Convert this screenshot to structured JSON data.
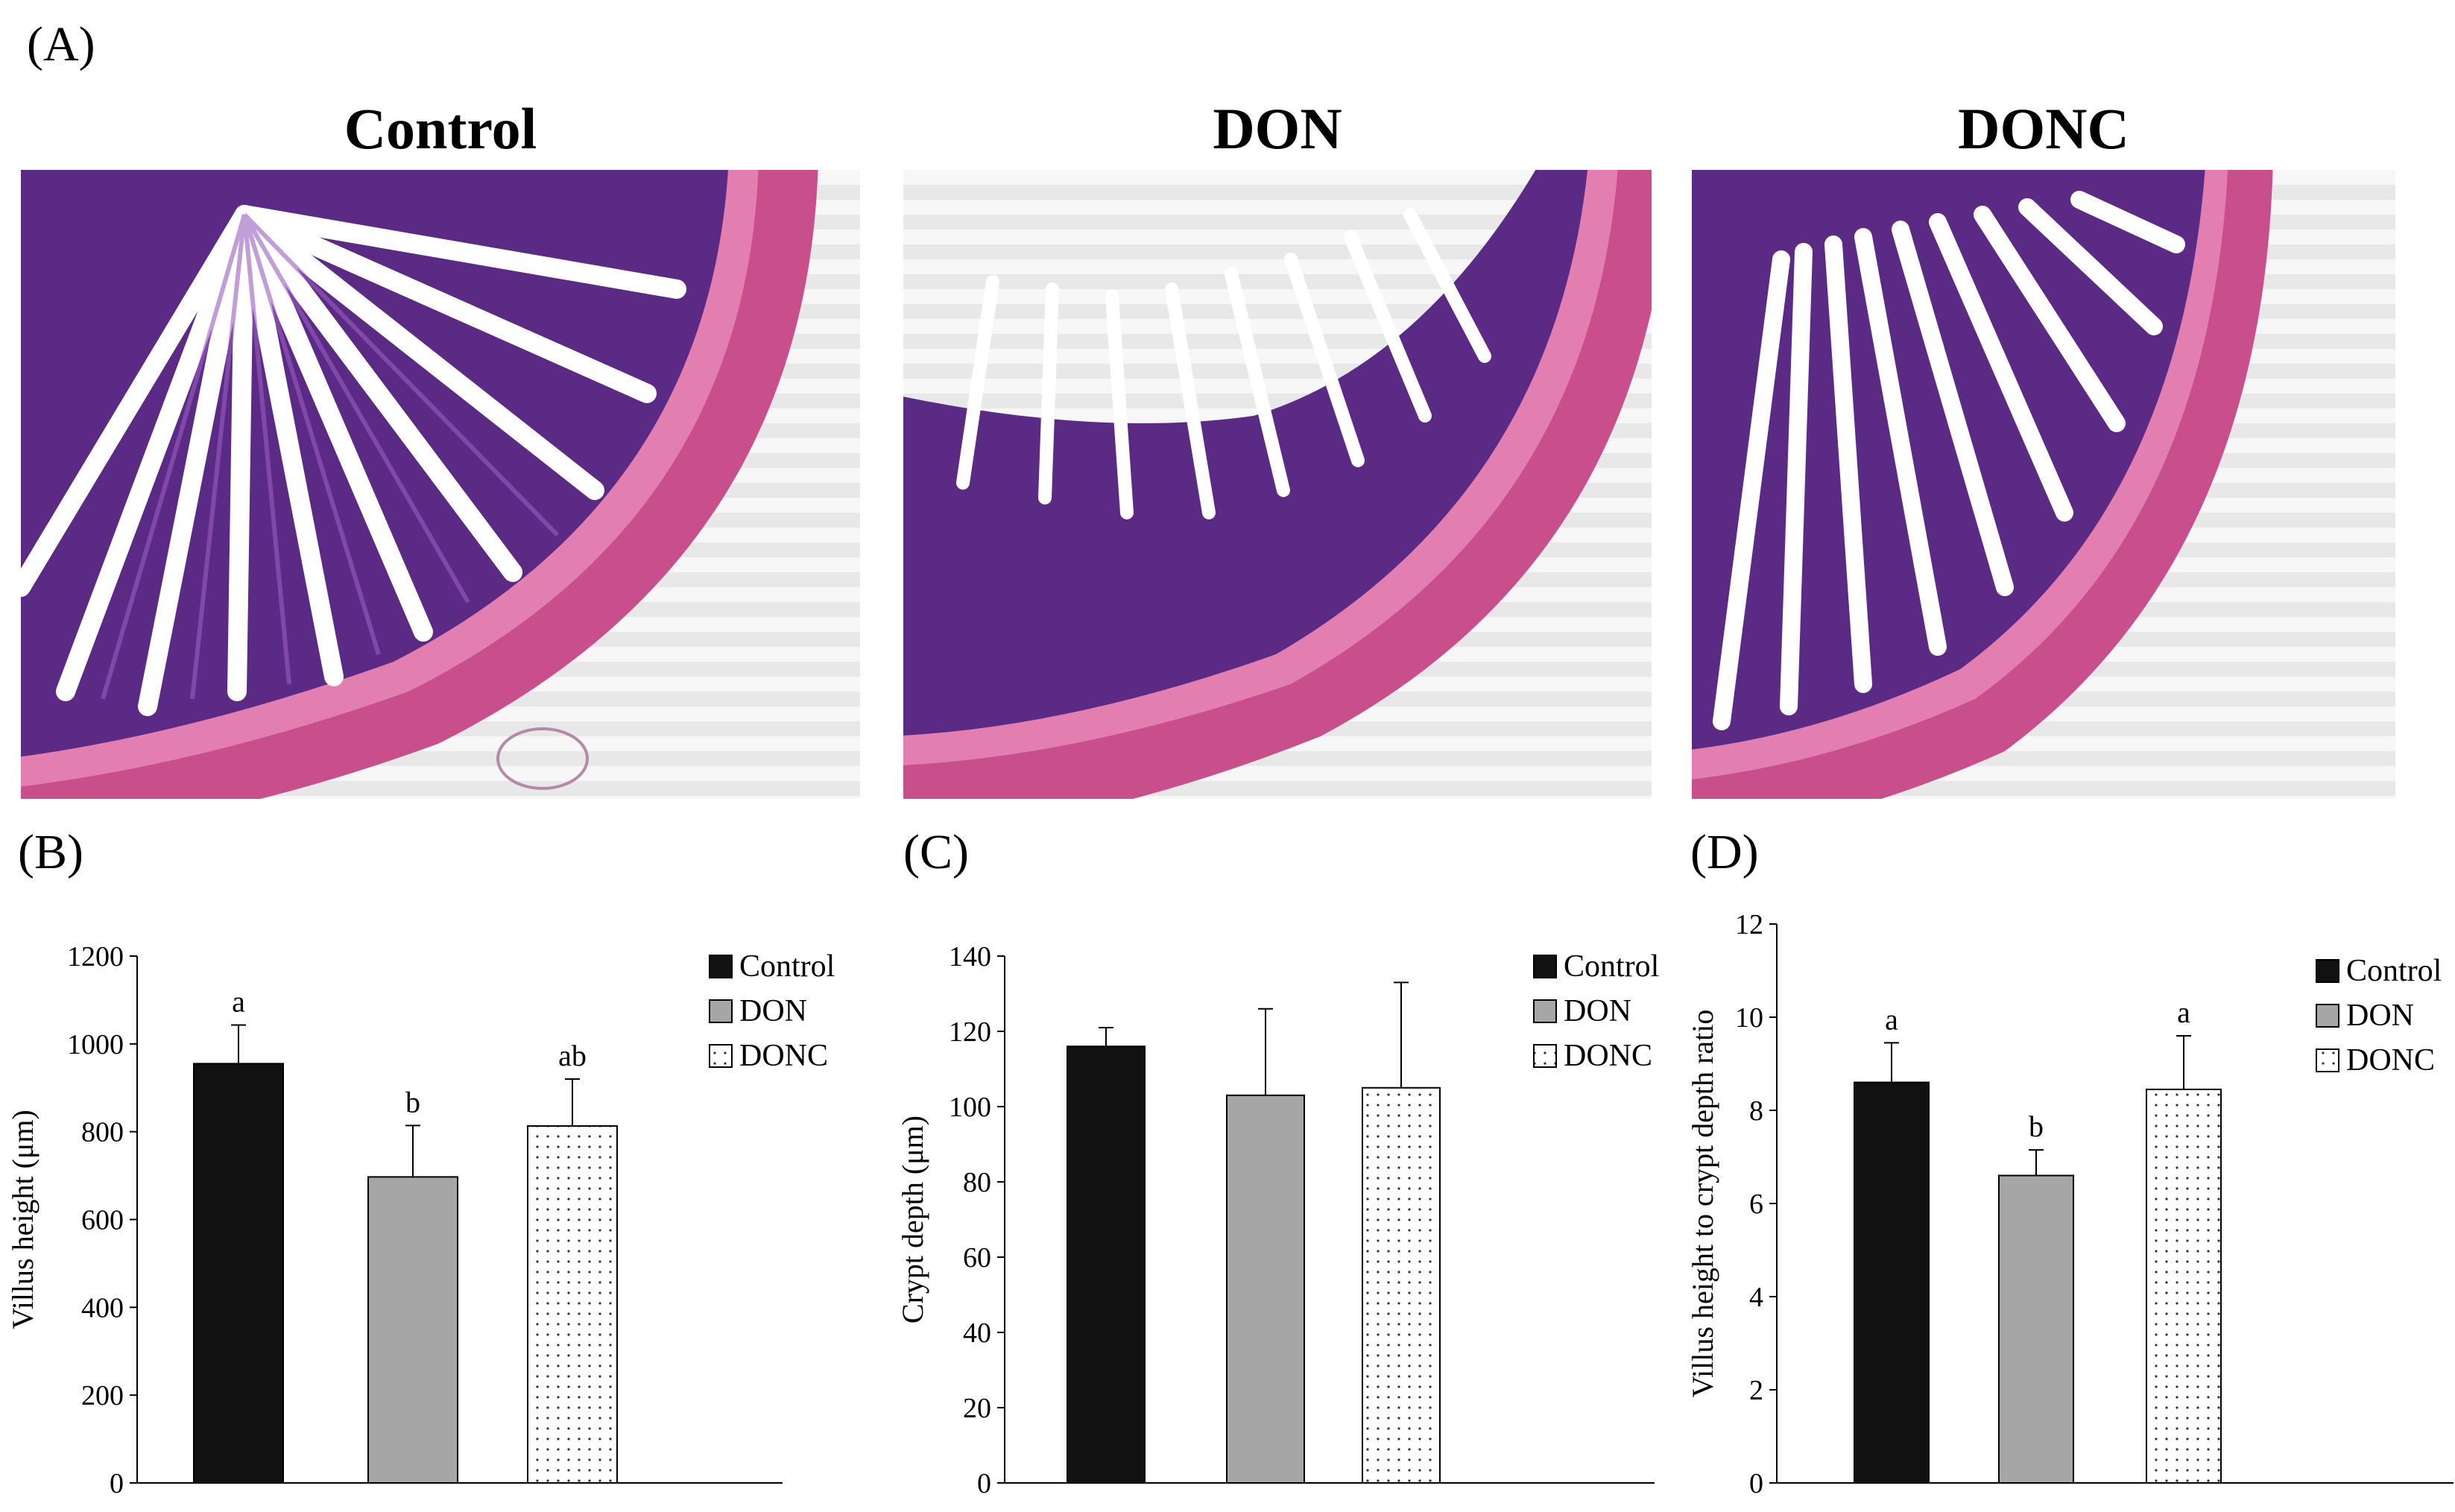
{
  "panel_letters": {
    "A": "(A)",
    "B": "(B)",
    "C": "(C)",
    "D": "(D)"
  },
  "micrographs": [
    {
      "title": "Control"
    },
    {
      "title": "DON"
    },
    {
      "title": "DONC"
    }
  ],
  "colors": {
    "control": "#111111",
    "don": "#a6a6a6",
    "donc_fill": "#ffffff",
    "tissue_muscle": "#d9649e",
    "tissue_villi": "#7a3d96",
    "tissue_background": "#f4f4f4"
  },
  "chart_data": [
    {
      "type": "bar",
      "panel": "(B)",
      "categories": [
        "Control",
        "DON",
        "DONC"
      ],
      "values": [
        955,
        697,
        813
      ],
      "errors": [
        88,
        117,
        107
      ],
      "significance": [
        "a",
        "b",
        "ab"
      ],
      "ylabel": "Villus height (μm)",
      "ylim": [
        0,
        1200
      ],
      "yticks": [
        "0",
        "200",
        "400",
        "600",
        "800",
        "1000",
        "1200"
      ],
      "legend": [
        "Control",
        "DON",
        "DONC"
      ],
      "legend_position": "top-right",
      "grid": false
    },
    {
      "type": "bar",
      "panel": "(C)",
      "categories": [
        "Control",
        "DON",
        "DONC"
      ],
      "values": [
        116,
        103,
        105
      ],
      "errors": [
        5,
        23,
        28
      ],
      "significance": [
        "",
        "",
        ""
      ],
      "ylabel": "Crypt depth (μm)",
      "ylim": [
        0,
        140
      ],
      "yticks": [
        "0",
        "20",
        "40",
        "60",
        "80",
        "100",
        "120",
        "140"
      ],
      "legend": [
        "Control",
        "DON",
        "DONC"
      ],
      "legend_position": "top-right",
      "grid": false
    },
    {
      "type": "bar",
      "panel": "(D)",
      "categories": [
        "Control",
        "DON",
        "DONC"
      ],
      "values": [
        8.6,
        6.6,
        8.45
      ],
      "errors": [
        0.85,
        0.55,
        1.15
      ],
      "significance": [
        "a",
        "b",
        "a"
      ],
      "ylabel": "Villus height to crypt depth ratio",
      "ylim": [
        0,
        12
      ],
      "yticks": [
        "0",
        "2",
        "4",
        "6",
        "8",
        "10",
        "12"
      ],
      "legend": [
        "Control",
        "DON",
        "DONC"
      ],
      "legend_position": "top-right",
      "grid": false
    }
  ]
}
